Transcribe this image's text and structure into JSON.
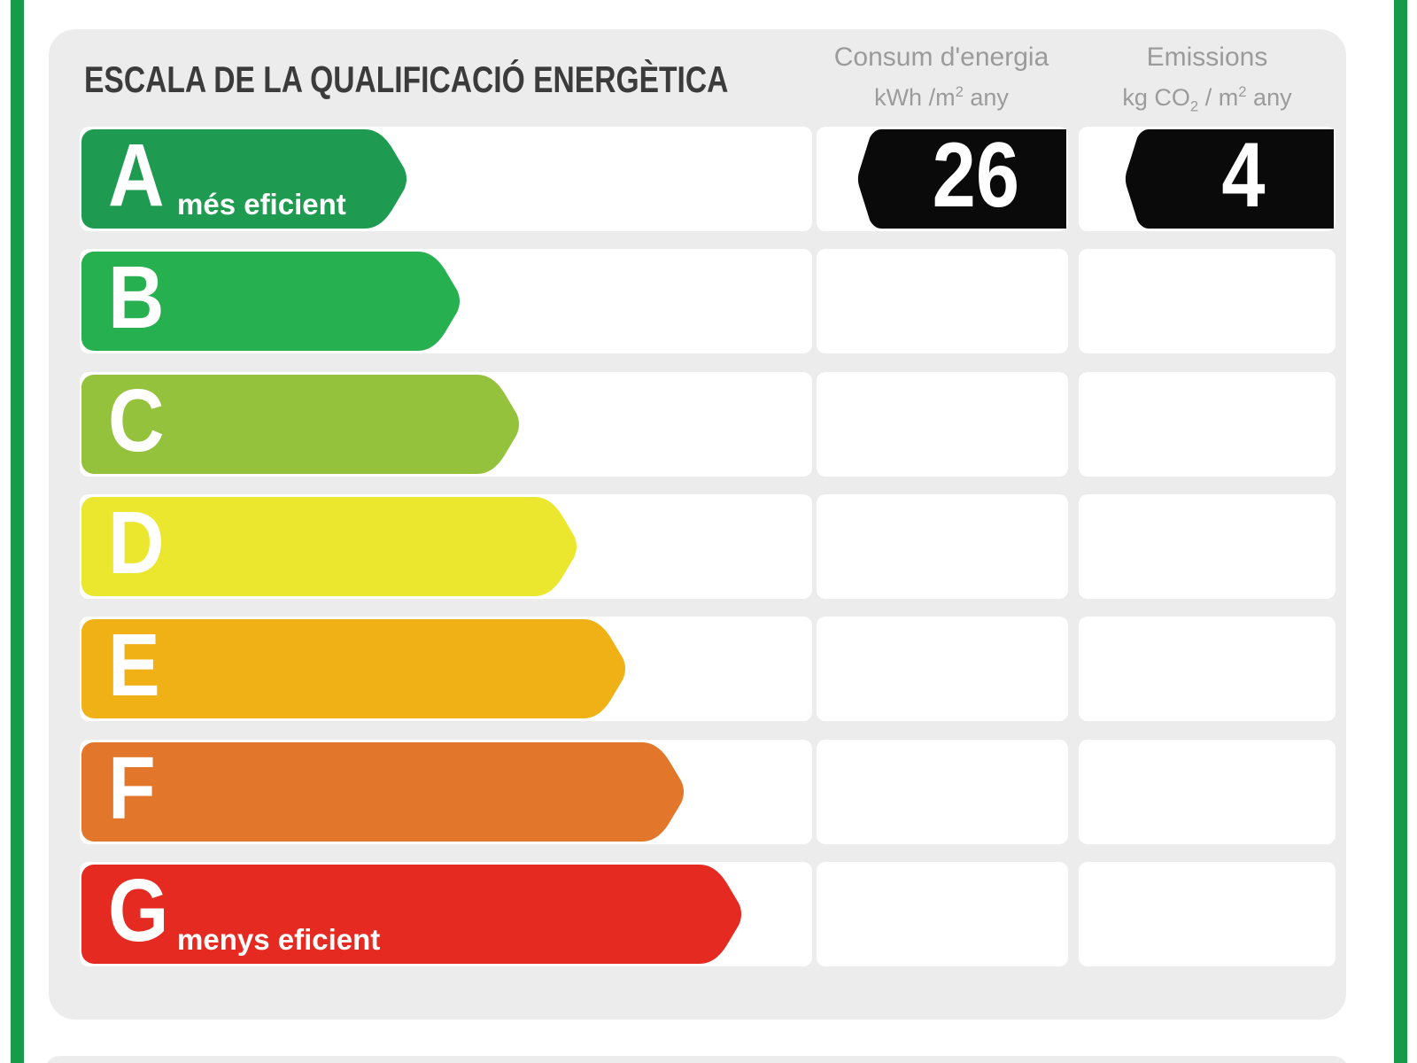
{
  "page": {
    "background": "#ffffff",
    "border_color": "#189a4b"
  },
  "panel": {
    "title": "ESCALA DE LA QUALIFICACIÓ ENERGÈTICA",
    "background": "#ececec"
  },
  "columns": {
    "consumption": {
      "title": "Consum d'energia",
      "unit_prefix": "kWh /m",
      "unit_sup": "2",
      "unit_suffix": " any",
      "value": "26"
    },
    "emissions": {
      "title": "Emissions",
      "unit_prefix": "kg CO",
      "unit_sub": "2",
      "unit_mid": " / m",
      "unit_sup": "2",
      "unit_suffix": " any",
      "value": "4"
    }
  },
  "scale": {
    "badge_color": "#0a0a0a",
    "rows": [
      {
        "letter": "A",
        "label": "més eficient",
        "color": "#1f9b51",
        "width_pct": 44.5
      },
      {
        "letter": "B",
        "label": "",
        "color": "#27b04f",
        "width_pct": 51.8
      },
      {
        "letter": "C",
        "label": "",
        "color": "#95c23c",
        "width_pct": 59.8
      },
      {
        "letter": "D",
        "label": "",
        "color": "#ebe72f",
        "width_pct": 67.7
      },
      {
        "letter": "E",
        "label": "",
        "color": "#f0b116",
        "width_pct": 74.4
      },
      {
        "letter": "F",
        "label": "",
        "color": "#e2772b",
        "width_pct": 82.3
      },
      {
        "letter": "G",
        "label": "menys eficient",
        "color": "#e52a22",
        "width_pct": 90.2
      }
    ]
  },
  "chart_data": {
    "type": "bar",
    "title": "ESCALA DE LA QUALIFICACIÓ ENERGÈTICA",
    "categories": [
      "A",
      "B",
      "C",
      "D",
      "E",
      "F",
      "G"
    ],
    "series": [
      {
        "name": "relative arrow length (%)",
        "values": [
          44.5,
          51.8,
          59.8,
          67.7,
          74.4,
          82.3,
          90.2
        ]
      }
    ],
    "annotations": [
      "A = més eficient",
      "G = menys eficient"
    ],
    "rating": "A",
    "consumption": {
      "label": "Consum d'energia",
      "unit": "kWh /m2 any",
      "value": 26
    },
    "emissions": {
      "label": "Emissions",
      "unit": "kg CO2 / m2 any",
      "value": 4
    },
    "bar_colors": [
      "#1f9b51",
      "#27b04f",
      "#95c23c",
      "#ebe72f",
      "#f0b116",
      "#e2772b",
      "#e52a22"
    ],
    "legend": false,
    "grid": false
  }
}
